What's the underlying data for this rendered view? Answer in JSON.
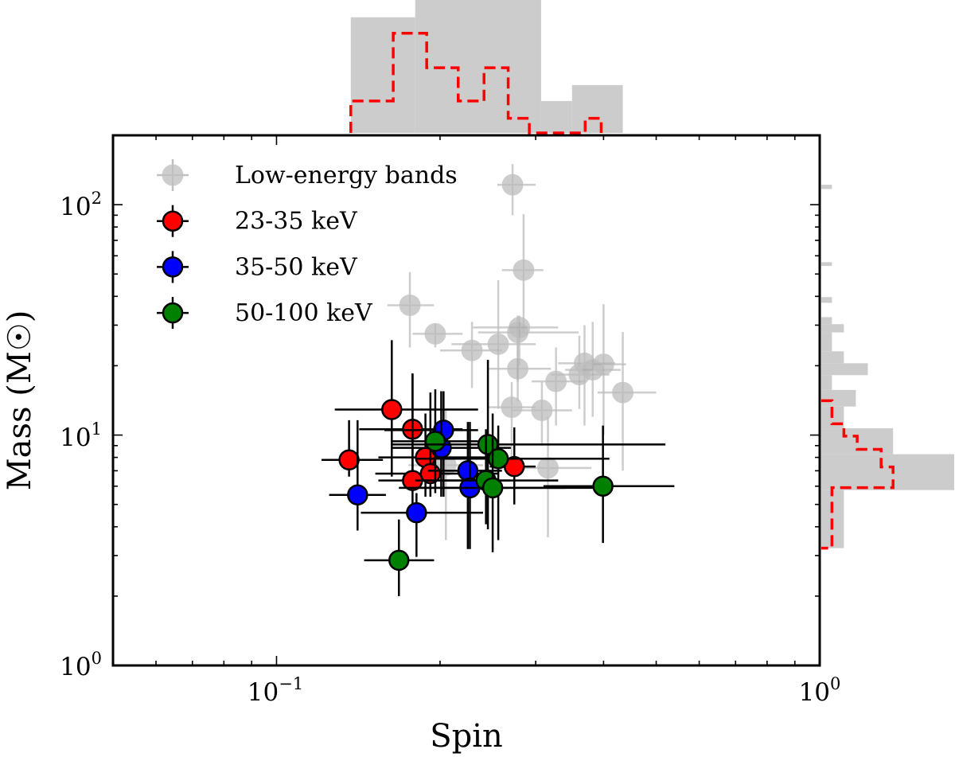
{
  "chart_data": {
    "type": "scatter",
    "xlabel": "Spin",
    "ylabel": "Mass (M☉)",
    "xscale": "log",
    "yscale": "log",
    "xlim": [
      0.05,
      1.0
    ],
    "ylim": [
      1,
      200
    ],
    "x_ticks": [
      {
        "base": "10",
        "exp": "−1",
        "value": 0.1
      },
      {
        "base": "10",
        "exp": "0",
        "value": 1.0
      }
    ],
    "y_ticks": [
      {
        "base": "10",
        "exp": "0",
        "value": 1
      },
      {
        "base": "10",
        "exp": "1",
        "value": 10
      },
      {
        "base": "10",
        "exp": "2",
        "value": 100
      }
    ],
    "grid": false,
    "legend_position": "top-left",
    "series": [
      {
        "name": "Low-energy bands",
        "color": "#bdbdbd",
        "edge": "none",
        "errcolor": "#bdbdbd",
        "points": [
          {
            "x": 0.272,
            "y": 122,
            "x_lo": 0.255,
            "x_hi": 0.3,
            "y_lo": 90,
            "y_hi": 150
          },
          {
            "x": 0.285,
            "y": 52,
            "x_lo": 0.26,
            "x_hi": 0.31,
            "y_lo": 28,
            "y_hi": 91
          },
          {
            "x": 0.176,
            "y": 36.6,
            "x_lo": 0.16,
            "x_hi": 0.195,
            "y_lo": 24,
            "y_hi": 51
          },
          {
            "x": 0.196,
            "y": 27.5,
            "x_lo": 0.178,
            "x_hi": 0.22,
            "y_lo": 24,
            "y_hi": 30
          },
          {
            "x": 0.229,
            "y": 23.3,
            "x_lo": 0.2,
            "x_hi": 0.26,
            "y_lo": 16,
            "y_hi": 31
          },
          {
            "x": 0.256,
            "y": 24.8,
            "x_lo": 0.21,
            "x_hi": 0.3,
            "y_lo": 13,
            "y_hi": 47
          },
          {
            "x": 0.278,
            "y": 27.9,
            "x_lo": 0.235,
            "x_hi": 0.36,
            "y_lo": 17,
            "y_hi": 33
          },
          {
            "x": 0.28,
            "y": 29.3,
            "x_lo": 0.23,
            "x_hi": 0.33,
            "y_lo": 20,
            "y_hi": 33
          },
          {
            "x": 0.278,
            "y": 19.4,
            "x_lo": 0.245,
            "x_hi": 0.32,
            "y_lo": 14,
            "y_hi": 29
          },
          {
            "x": 0.271,
            "y": 13.2,
            "x_lo": 0.245,
            "x_hi": 0.3,
            "y_lo": 7,
            "y_hi": 17
          },
          {
            "x": 0.308,
            "y": 12.8,
            "x_lo": 0.27,
            "x_hi": 0.35,
            "y_lo": 9,
            "y_hi": 17
          },
          {
            "x": 0.327,
            "y": 17.1,
            "x_lo": 0.295,
            "x_hi": 0.37,
            "y_lo": 11,
            "y_hi": 24
          },
          {
            "x": 0.361,
            "y": 18.3,
            "x_lo": 0.32,
            "x_hi": 0.41,
            "y_lo": 13,
            "y_hi": 27
          },
          {
            "x": 0.369,
            "y": 20.5,
            "x_lo": 0.33,
            "x_hi": 0.42,
            "y_lo": 11,
            "y_hi": 30
          },
          {
            "x": 0.382,
            "y": 19.2,
            "x_lo": 0.34,
            "x_hi": 0.43,
            "y_lo": 12,
            "y_hi": 31
          },
          {
            "x": 0.4,
            "y": 20.3,
            "x_lo": 0.37,
            "x_hi": 0.44,
            "y_lo": 10,
            "y_hi": 37
          },
          {
            "x": 0.434,
            "y": 15.3,
            "x_lo": 0.39,
            "x_hi": 0.5,
            "y_lo": 7,
            "y_hi": 28
          },
          {
            "x": 0.316,
            "y": 7.2,
            "x_lo": 0.27,
            "x_hi": 0.38,
            "y_lo": 3.6,
            "y_hi": 12
          },
          {
            "x": 0.205,
            "y": 7.4,
            "x_lo": 0.175,
            "x_hi": 0.24,
            "y_lo": 3.5,
            "y_hi": 13
          }
        ]
      },
      {
        "name": "23-35 keV",
        "color": "#ff0000",
        "edge": "#000000",
        "errcolor": "#000000",
        "points": [
          {
            "x": 0.136,
            "y": 7.8,
            "x_lo": 0.121,
            "x_hi": 0.157,
            "y_lo": 6.6,
            "y_hi": 11.6
          },
          {
            "x": 0.163,
            "y": 12.9,
            "x_lo": 0.128,
            "x_hi": 0.235,
            "y_lo": 6.6,
            "y_hi": 25.8
          },
          {
            "x": 0.178,
            "y": 10.6,
            "x_lo": 0.142,
            "x_hi": 0.22,
            "y_lo": 6.1,
            "y_hi": 18.5
          },
          {
            "x": 0.188,
            "y": 8.0,
            "x_lo": 0.154,
            "x_hi": 0.25,
            "y_lo": 5.4,
            "y_hi": 12.4
          },
          {
            "x": 0.192,
            "y": 6.8,
            "x_lo": 0.152,
            "x_hi": 0.255,
            "y_lo": 5.4,
            "y_hi": 15.3
          },
          {
            "x": 0.178,
            "y": 6.35,
            "x_lo": 0.154,
            "x_hi": 0.27,
            "y_lo": 4.8,
            "y_hi": 18.5
          },
          {
            "x": 0.274,
            "y": 7.3,
            "x_lo": 0.247,
            "x_hi": 0.3,
            "y_lo": 5.0,
            "y_hi": 10.8
          }
        ]
      },
      {
        "name": "35-50 keV",
        "color": "#0000ff",
        "edge": "#000000",
        "errcolor": "#000000",
        "points": [
          {
            "x": 0.141,
            "y": 5.5,
            "x_lo": 0.125,
            "x_hi": 0.159,
            "y_lo": 3.85,
            "y_hi": 11.6
          },
          {
            "x": 0.181,
            "y": 4.6,
            "x_lo": 0.143,
            "x_hi": 0.24,
            "y_lo": 2.96,
            "y_hi": 5.6
          },
          {
            "x": 0.203,
            "y": 10.5,
            "x_lo": 0.158,
            "x_hi": 0.235,
            "y_lo": 5.4,
            "y_hi": 15.5
          },
          {
            "x": 0.201,
            "y": 8.8,
            "x_lo": 0.163,
            "x_hi": 0.27,
            "y_lo": 5.4,
            "y_hi": 15.5
          },
          {
            "x": 0.225,
            "y": 7.0,
            "x_lo": 0.19,
            "x_hi": 0.26,
            "y_lo": 3.2,
            "y_hi": 11.4
          },
          {
            "x": 0.227,
            "y": 5.9,
            "x_lo": 0.18,
            "x_hi": 0.34,
            "y_lo": 3.2,
            "y_hi": 11.4
          }
        ]
      },
      {
        "name": "50-100 keV",
        "color": "#008000",
        "edge": "#000000",
        "errcolor": "#000000",
        "points": [
          {
            "x": 0.168,
            "y": 2.86,
            "x_lo": 0.145,
            "x_hi": 0.195,
            "y_lo": 2.0,
            "y_hi": 4.3
          },
          {
            "x": 0.196,
            "y": 9.4,
            "x_lo": 0.163,
            "x_hi": 0.235,
            "y_lo": 5.6,
            "y_hi": 15.8
          },
          {
            "x": 0.245,
            "y": 9.1,
            "x_lo": 0.163,
            "x_hi": 0.52,
            "y_lo": 3.9,
            "y_hi": 21.2
          },
          {
            "x": 0.256,
            "y": 7.9,
            "x_lo": 0.18,
            "x_hi": 0.41,
            "y_lo": 3.5,
            "y_hi": 11.0
          },
          {
            "x": 0.243,
            "y": 6.35,
            "x_lo": 0.18,
            "x_hi": 0.33,
            "y_lo": 4.1,
            "y_hi": 10.6
          },
          {
            "x": 0.25,
            "y": 5.9,
            "x_lo": 0.168,
            "x_hi": 0.39,
            "y_lo": 3.1,
            "y_hi": 12.4
          },
          {
            "x": 0.399,
            "y": 6.0,
            "x_lo": 0.31,
            "x_hi": 0.54,
            "y_lo": 3.4,
            "y_hi": 11.0
          }
        ]
      }
    ],
    "top_histogram": {
      "variable": "Spin",
      "gray": {
        "color": "#cccccc",
        "edges": [
          0.137,
          0.18,
          0.307,
          0.35,
          0.434
        ],
        "relative_heights": [
          0.87,
          1.0,
          0.24,
          0.36
        ]
      },
      "red_dashed": {
        "color": "#ff0000",
        "edges": [
          0.137,
          0.164,
          0.189,
          0.216,
          0.241,
          0.267,
          0.292,
          0.37,
          0.396
        ],
        "relative_heights": [
          0.24,
          0.75,
          0.49,
          0.24,
          0.49,
          0.11,
          0,
          0.11
        ]
      }
    },
    "right_histogram": {
      "variable": "Mass",
      "gray": {
        "color": "#cccccc",
        "bins": [
          {
            "lo": 117,
            "hi": 122,
            "rel": 0.08
          },
          {
            "lo": 54.2,
            "hi": 56.3,
            "rel": 0.08
          },
          {
            "lo": 37.5,
            "hi": 39.7,
            "rel": 0.08
          },
          {
            "lo": 30.3,
            "hi": 32.5,
            "rel": 0.08
          },
          {
            "lo": 27.9,
            "hi": 30.3,
            "rel": 0.17
          },
          {
            "lo": 23.1,
            "hi": 27.9,
            "rel": 0.08
          },
          {
            "lo": 20.5,
            "hi": 23.1,
            "rel": 0.17
          },
          {
            "lo": 18.2,
            "hi": 20.5,
            "rel": 0.35
          },
          {
            "lo": 15.7,
            "hi": 18.2,
            "rel": 0.08
          },
          {
            "lo": 13.3,
            "hi": 15.7,
            "rel": 0.26
          },
          {
            "lo": 10.7,
            "hi": 13.3,
            "rel": 0.17
          },
          {
            "lo": 8.26,
            "hi": 10.7,
            "rel": 0.54
          },
          {
            "lo": 5.77,
            "hi": 8.26,
            "rel": 1.0
          },
          {
            "lo": 3.23,
            "hi": 5.77,
            "rel": 0.17
          }
        ]
      },
      "red_dashed": {
        "color": "#ff0000",
        "bins": [
          {
            "lo": 11.2,
            "hi": 14.1,
            "rel": 0.08
          },
          {
            "lo": 9.9,
            "hi": 11.2,
            "rel": 0.17
          },
          {
            "lo": 8.67,
            "hi": 9.9,
            "rel": 0.27
          },
          {
            "lo": 7.27,
            "hi": 8.67,
            "rel": 0.45
          },
          {
            "lo": 5.91,
            "hi": 7.27,
            "rel": 0.54
          },
          {
            "lo": 3.23,
            "hi": 5.91,
            "rel": 0.08
          }
        ]
      }
    }
  }
}
